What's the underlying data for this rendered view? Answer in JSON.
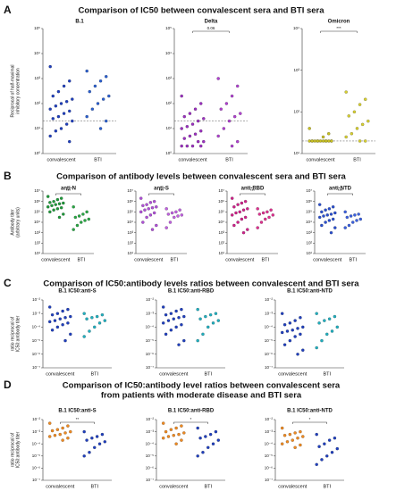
{
  "sections": [
    {
      "letter": "A",
      "title": [
        "Comparison of IC50 between convalescent sera and BTI sera"
      ]
    },
    {
      "letter": "B",
      "title": [
        "Comparison of antibody levels between convalescent sera and BTI sera"
      ]
    },
    {
      "letter": "C",
      "title": [
        "Comparison of IC50:antibody levels ratios between convalescent and BTI sera"
      ]
    },
    {
      "letter": "D",
      "title": [
        "Comparison of IC50:antibody level ratios between convalescent sera",
        "from patients with moderate disease and BTI sera"
      ]
    }
  ],
  "chart_data": [
    {
      "type": "scatter",
      "title": "B.1",
      "ylabel": [
        "Reciprocal of half-maximal",
        "inhibitory concentration"
      ],
      "categories": [
        "convalescent",
        "BTI"
      ],
      "colors": [
        "#1f3fbf",
        "#2a5fd0"
      ],
      "log": true,
      "ylim": [
        1,
        100000
      ],
      "yticks": [
        {
          "value": 1,
          "label": "10⁰"
        },
        {
          "value": 10,
          "label": "10¹"
        },
        {
          "value": 100,
          "label": "10²"
        },
        {
          "value": 1000,
          "label": "10³"
        },
        {
          "value": 10000,
          "label": "10⁴"
        },
        {
          "value": 100000,
          "label": "10⁵"
        }
      ],
      "hline": 20,
      "values": [
        [
          3000,
          800,
          500,
          300,
          200,
          150,
          120,
          100,
          80,
          60,
          50,
          40,
          30,
          25,
          20,
          15,
          10,
          8,
          5,
          3
        ],
        [
          2000,
          1200,
          800,
          500,
          300,
          200,
          150,
          100,
          60,
          30,
          20,
          10
        ]
      ]
    },
    {
      "type": "scatter",
      "title": "Delta",
      "categories": [
        "convalescent",
        "BTI"
      ],
      "colors": [
        "#9b2fc0",
        "#b040d0"
      ],
      "log": true,
      "ylim": [
        1,
        100000
      ],
      "yticks": [
        {
          "value": 1,
          "label": "10⁰"
        },
        {
          "value": 10,
          "label": "10¹"
        },
        {
          "value": 100,
          "label": "10²"
        },
        {
          "value": 1000,
          "label": "10³"
        },
        {
          "value": 10000,
          "label": "10⁴"
        },
        {
          "value": 100000,
          "label": "10⁵"
        }
      ],
      "hline": 20,
      "annotation": "0.06",
      "values": [
        [
          200,
          100,
          60,
          40,
          30,
          25,
          20,
          15,
          12,
          10,
          8,
          6,
          5,
          4,
          3,
          3,
          2,
          2,
          2,
          2
        ],
        [
          1000,
          500,
          200,
          100,
          60,
          40,
          30,
          20,
          10,
          5,
          3,
          2
        ]
      ]
    },
    {
      "type": "scatter",
      "title": "Omicron",
      "categories": [
        "convalescent",
        "BTI"
      ],
      "colors": [
        "#c8c020",
        "#d8d030"
      ],
      "log": true,
      "ylim": [
        10,
        10000
      ],
      "yticks": [
        {
          "value": 10,
          "label": "10¹"
        },
        {
          "value": 100,
          "label": "10²"
        },
        {
          "value": 1000,
          "label": "10³"
        },
        {
          "value": 10000,
          "label": "10⁴"
        }
      ],
      "hline": 20,
      "annotation": "***",
      "values": [
        [
          40,
          30,
          25,
          20,
          20,
          20,
          20,
          20,
          20,
          20,
          20,
          20,
          20,
          20,
          20,
          20
        ],
        [
          300,
          200,
          150,
          100,
          80,
          60,
          50,
          40,
          30,
          25,
          20,
          20
        ]
      ]
    },
    {
      "type": "scatter",
      "title": "anti-N",
      "ylabel": [
        "Antibody titer",
        "(arbitrary units)"
      ],
      "categories": [
        "convalescent",
        "BTI"
      ],
      "colors": [
        "#1e9a3a",
        "#28a844"
      ],
      "log": true,
      "ylim": [
        10,
        10000000
      ],
      "yticks": [
        {
          "value": 10,
          "label": "10¹"
        },
        {
          "value": 100,
          "label": "10²"
        },
        {
          "value": 1000,
          "label": "10³"
        },
        {
          "value": 10000,
          "label": "10⁴"
        },
        {
          "value": 100000,
          "label": "10⁵"
        },
        {
          "value": 1000000,
          "label": "10⁶"
        },
        {
          "value": 10000000,
          "label": "10⁷"
        }
      ],
      "annotation": "***",
      "values": [
        [
          3000000,
          2000000,
          1500000,
          1000000,
          800000,
          700000,
          600000,
          500000,
          400000,
          300000,
          250000,
          200000,
          150000,
          100000,
          60000,
          30000
        ],
        [
          300000,
          100000,
          60000,
          40000,
          30000,
          20000,
          15000,
          10000,
          5000,
          2000
        ]
      ]
    },
    {
      "type": "scatter",
      "title": "anti-S",
      "categories": [
        "convalescent",
        "BTI"
      ],
      "colors": [
        "#b050d8",
        "#c060e0"
      ],
      "log": true,
      "ylim": [
        10,
        10000000
      ],
      "yticks": [
        {
          "value": 10,
          "label": "10¹"
        },
        {
          "value": 100,
          "label": "10²"
        },
        {
          "value": 1000,
          "label": "10³"
        },
        {
          "value": 10000,
          "label": "10⁴"
        },
        {
          "value": 100000,
          "label": "10⁵"
        },
        {
          "value": 1000000,
          "label": "10⁶"
        },
        {
          "value": 10000000,
          "label": "10⁷"
        }
      ],
      "annotation": "***",
      "values": [
        [
          2000000,
          1000000,
          800000,
          500000,
          400000,
          300000,
          250000,
          200000,
          150000,
          100000,
          80000,
          50000,
          30000,
          10000,
          5000,
          2000
        ],
        [
          200000,
          150000,
          100000,
          80000,
          60000,
          50000,
          40000,
          30000,
          10000,
          3000
        ]
      ]
    },
    {
      "type": "scatter",
      "title": "anti-RBD",
      "categories": [
        "convalescent",
        "BTI"
      ],
      "colors": [
        "#d0208a",
        "#e03090"
      ],
      "log": true,
      "ylim": [
        10,
        10000000
      ],
      "yticks": [
        {
          "value": 10,
          "label": "10¹"
        },
        {
          "value": 100,
          "label": "10²"
        },
        {
          "value": 1000,
          "label": "10³"
        },
        {
          "value": 10000,
          "label": "10⁴"
        },
        {
          "value": 100000,
          "label": "10⁵"
        },
        {
          "value": 1000000,
          "label": "10⁶"
        },
        {
          "value": 10000000,
          "label": "10⁷"
        }
      ],
      "annotation": "***",
      "values": [
        [
          2000000,
          1000000,
          700000,
          500000,
          300000,
          200000,
          150000,
          100000,
          80000,
          50000,
          30000,
          20000,
          10000,
          5000,
          2000,
          1000
        ],
        [
          200000,
          150000,
          100000,
          80000,
          60000,
          50000,
          30000,
          20000,
          10000,
          3000
        ]
      ]
    },
    {
      "type": "scatter",
      "title": "anti-NTD",
      "categories": [
        "convalescent",
        "BTI"
      ],
      "colors": [
        "#2a4fd0",
        "#3a60e0"
      ],
      "log": true,
      "ylim": [
        10,
        10000000
      ],
      "yticks": [
        {
          "value": 10,
          "label": "10¹"
        },
        {
          "value": 100,
          "label": "10²"
        },
        {
          "value": 1000,
          "label": "10³"
        },
        {
          "value": 10000,
          "label": "10⁴"
        },
        {
          "value": 100000,
          "label": "10⁵"
        },
        {
          "value": 1000000,
          "label": "10⁶"
        },
        {
          "value": 10000000,
          "label": "10⁷"
        }
      ],
      "annotation": "***",
      "values": [
        [
          500000,
          300000,
          200000,
          150000,
          100000,
          80000,
          60000,
          50000,
          40000,
          30000,
          20000,
          15000,
          10000,
          5000,
          3000,
          1000
        ],
        [
          100000,
          60000,
          50000,
          40000,
          30000,
          20000,
          15000,
          10000,
          5000,
          3000
        ]
      ]
    },
    {
      "type": "scatter",
      "title": "B.1 IC50:anti-S",
      "ylabel": [
        "ratio reciprocal of",
        "IC50:antibody titer"
      ],
      "categories": [
        "convalescent",
        "BTI"
      ],
      "colors": [
        "#1f3fbf",
        "#20b0c0"
      ],
      "log": true,
      "ylim": [
        1e-07,
        0.01
      ],
      "yticks": [
        {
          "value": 1e-07,
          "label": "10⁻⁷"
        },
        {
          "value": 1e-06,
          "label": "10⁻⁶"
        },
        {
          "value": 1e-05,
          "label": "10⁻⁵"
        },
        {
          "value": 0.0001,
          "label": "10⁻⁴"
        },
        {
          "value": 0.001,
          "label": "10⁻³"
        },
        {
          "value": 0.01,
          "label": "10⁻²"
        }
      ],
      "values": [
        [
          0.003,
          0.002,
          0.0015,
          0.001,
          0.0008,
          0.0006,
          0.0005,
          0.0004,
          0.0003,
          0.00025,
          0.0002,
          0.00015,
          0.0001,
          6e-05,
          3e-05,
          1e-05
        ],
        [
          0.001,
          0.0008,
          0.0006,
          0.0005,
          0.0004,
          0.0003,
          0.0002,
          0.0001,
          5e-05,
          2e-05
        ]
      ]
    },
    {
      "type": "scatter",
      "title": "B.1 IC50:anti-RBD",
      "categories": [
        "convalescent",
        "BTI"
      ],
      "colors": [
        "#1f3fbf",
        "#20b0c0"
      ],
      "log": true,
      "ylim": [
        1e-07,
        0.01
      ],
      "yticks": [
        {
          "value": 1e-07,
          "label": "10⁻⁷"
        },
        {
          "value": 1e-06,
          "label": "10⁻⁶"
        },
        {
          "value": 1e-05,
          "label": "10⁻⁵"
        },
        {
          "value": 0.0001,
          "label": "10⁻⁴"
        },
        {
          "value": 0.001,
          "label": "10⁻³"
        },
        {
          "value": 0.01,
          "label": "10⁻²"
        }
      ],
      "values": [
        [
          0.003,
          0.002,
          0.0015,
          0.001,
          0.0008,
          0.0006,
          0.0005,
          0.0004,
          0.0003,
          0.0002,
          0.00015,
          0.0001,
          6e-05,
          3e-05,
          1e-05,
          5e-06
        ],
        [
          0.002,
          0.001,
          0.0008,
          0.0006,
          0.0004,
          0.0003,
          0.0002,
          0.0001,
          3e-05,
          1e-05
        ]
      ]
    },
    {
      "type": "scatter",
      "title": "B.1 IC50:anti-NTD",
      "categories": [
        "convalescent",
        "BTI"
      ],
      "colors": [
        "#1f3fbf",
        "#20b0c0"
      ],
      "log": true,
      "ylim": [
        1e-07,
        0.01
      ],
      "yticks": [
        {
          "value": 1e-07,
          "label": "10⁻⁷"
        },
        {
          "value": 1e-06,
          "label": "10⁻⁶"
        },
        {
          "value": 1e-05,
          "label": "10⁻⁵"
        },
        {
          "value": 0.0001,
          "label": "10⁻⁴"
        },
        {
          "value": 0.001,
          "label": "10⁻³"
        },
        {
          "value": 0.01,
          "label": "10⁻²"
        }
      ],
      "values": [
        [
          0.001,
          0.0005,
          0.0003,
          0.0002,
          0.00015,
          0.0001,
          8e-05,
          6e-05,
          5e-05,
          4e-05,
          3e-05,
          2e-05,
          1e-05,
          5e-06,
          2e-06,
          1e-06
        ],
        [
          0.001,
          0.0006,
          0.0004,
          0.0003,
          0.0002,
          0.0001,
          5e-05,
          3e-05,
          1e-05,
          3e-06
        ]
      ]
    },
    {
      "type": "scatter",
      "title": "B.1 IC50:anti-S",
      "ylabel": [
        "ratio reciprocal of",
        "IC50:antibody titer"
      ],
      "categories": [
        "convalescent",
        "BTI"
      ],
      "colors": [
        "#f08a20",
        "#1f3fbf"
      ],
      "log": true,
      "ylim": [
        1e-07,
        0.01
      ],
      "yticks": [
        {
          "value": 1e-07,
          "label": "10⁻⁷"
        },
        {
          "value": 1e-06,
          "label": "10⁻⁶"
        },
        {
          "value": 1e-05,
          "label": "10⁻⁵"
        },
        {
          "value": 0.0001,
          "label": "10⁻⁴"
        },
        {
          "value": 0.001,
          "label": "10⁻³"
        },
        {
          "value": 0.01,
          "label": "10⁻²"
        }
      ],
      "annotation": "**",
      "values": [
        [
          0.005,
          0.003,
          0.002,
          0.0015,
          0.0012,
          0.001,
          0.0008,
          0.0006,
          0.0005,
          0.0004,
          0.0003,
          0.0002
        ],
        [
          0.001,
          0.0006,
          0.0004,
          0.0003,
          0.0002,
          0.00015,
          0.0001,
          5e-05,
          2e-05,
          1e-05
        ]
      ]
    },
    {
      "type": "scatter",
      "title": "B.1 IC50:anti-RBD",
      "categories": [
        "convalescent",
        "BTI"
      ],
      "colors": [
        "#f08a20",
        "#1f3fbf"
      ],
      "log": true,
      "ylim": [
        1e-07,
        0.01
      ],
      "yticks": [
        {
          "value": 1e-07,
          "label": "10⁻⁷"
        },
        {
          "value": 1e-06,
          "label": "10⁻⁶"
        },
        {
          "value": 1e-05,
          "label": "10⁻⁵"
        },
        {
          "value": 0.0001,
          "label": "10⁻⁴"
        },
        {
          "value": 0.001,
          "label": "10⁻³"
        },
        {
          "value": 0.01,
          "label": "10⁻²"
        }
      ],
      "annotation": "*",
      "values": [
        [
          0.005,
          0.003,
          0.002,
          0.0015,
          0.001,
          0.0008,
          0.0006,
          0.0005,
          0.0004,
          0.0003,
          0.0002,
          0.0001
        ],
        [
          0.002,
          0.001,
          0.0006,
          0.0004,
          0.0003,
          0.0002,
          0.0001,
          5e-05,
          2e-05,
          1e-05
        ]
      ]
    },
    {
      "type": "scatter",
      "title": "B.1 IC50:anti-NTD",
      "categories": [
        "convalescent",
        "BTI"
      ],
      "colors": [
        "#f08a20",
        "#1f3fbf"
      ],
      "log": true,
      "ylim": [
        1e-07,
        0.01
      ],
      "yticks": [
        {
          "value": 1e-07,
          "label": "10⁻⁷"
        },
        {
          "value": 1e-06,
          "label": "10⁻⁶"
        },
        {
          "value": 1e-05,
          "label": "10⁻⁵"
        },
        {
          "value": 0.0001,
          "label": "10⁻⁴"
        },
        {
          "value": 0.001,
          "label": "10⁻³"
        },
        {
          "value": 0.01,
          "label": "10⁻²"
        }
      ],
      "annotation": "*",
      "values": [
        [
          0.002,
          0.001,
          0.0008,
          0.0006,
          0.0005,
          0.0004,
          0.0003,
          0.0002,
          0.00015,
          0.0001,
          8e-05,
          5e-05
        ],
        [
          0.0006,
          0.0003,
          0.0002,
          0.0001,
          6e-05,
          4e-05,
          2e-05,
          1e-05,
          5e-06,
          2e-06
        ]
      ]
    }
  ]
}
